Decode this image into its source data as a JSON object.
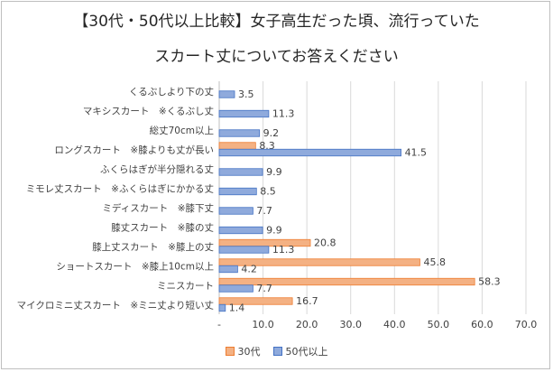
{
  "title_line1": "【30代・50代以上比較】女子高生だった頃、流行っていた",
  "title_line2": "スカート丈についてお答えください",
  "colors": {
    "s30": "#F4B183",
    "s30_border": "#ED7D31",
    "s50": "#8FAADC",
    "s50_border": "#4472C4",
    "grid": "#d9d9d9",
    "axis": "#bfbfbf",
    "text": "#404040"
  },
  "chart_data": {
    "type": "bar",
    "orientation": "horizontal",
    "categories": [
      "くるぶしより下の丈",
      "マキシスカート　※くるぶし丈",
      "総丈70cm以上",
      "ロングスカート　※膝よりも丈が長い",
      "ふくらはぎが半分隠れる丈",
      "ミモレ丈スカート　※ふくらはぎにかかる丈",
      "ミディスカート　※膝下丈",
      "膝丈スカート　※膝の丈",
      "膝上丈スカート　※膝上の丈",
      "ショートスカート　※膝上10cm以上",
      "ミニスカート",
      "マイクロミニ丈スカート　※ミニ丈より短い丈"
    ],
    "series": [
      {
        "name": "30代",
        "values": [
          null,
          null,
          null,
          8.3,
          null,
          null,
          null,
          null,
          20.8,
          45.8,
          58.3,
          16.7
        ]
      },
      {
        "name": "50代以上",
        "values": [
          3.5,
          11.3,
          9.2,
          41.5,
          9.9,
          8.5,
          7.7,
          9.9,
          11.3,
          4.2,
          7.7,
          1.4
        ]
      }
    ],
    "xlim": [
      0,
      70
    ],
    "xticks": [
      "-",
      "10.0",
      "20.0",
      "30.0",
      "40.0",
      "50.0",
      "60.0",
      "70.0"
    ],
    "grid": true,
    "legend": "bottom"
  }
}
